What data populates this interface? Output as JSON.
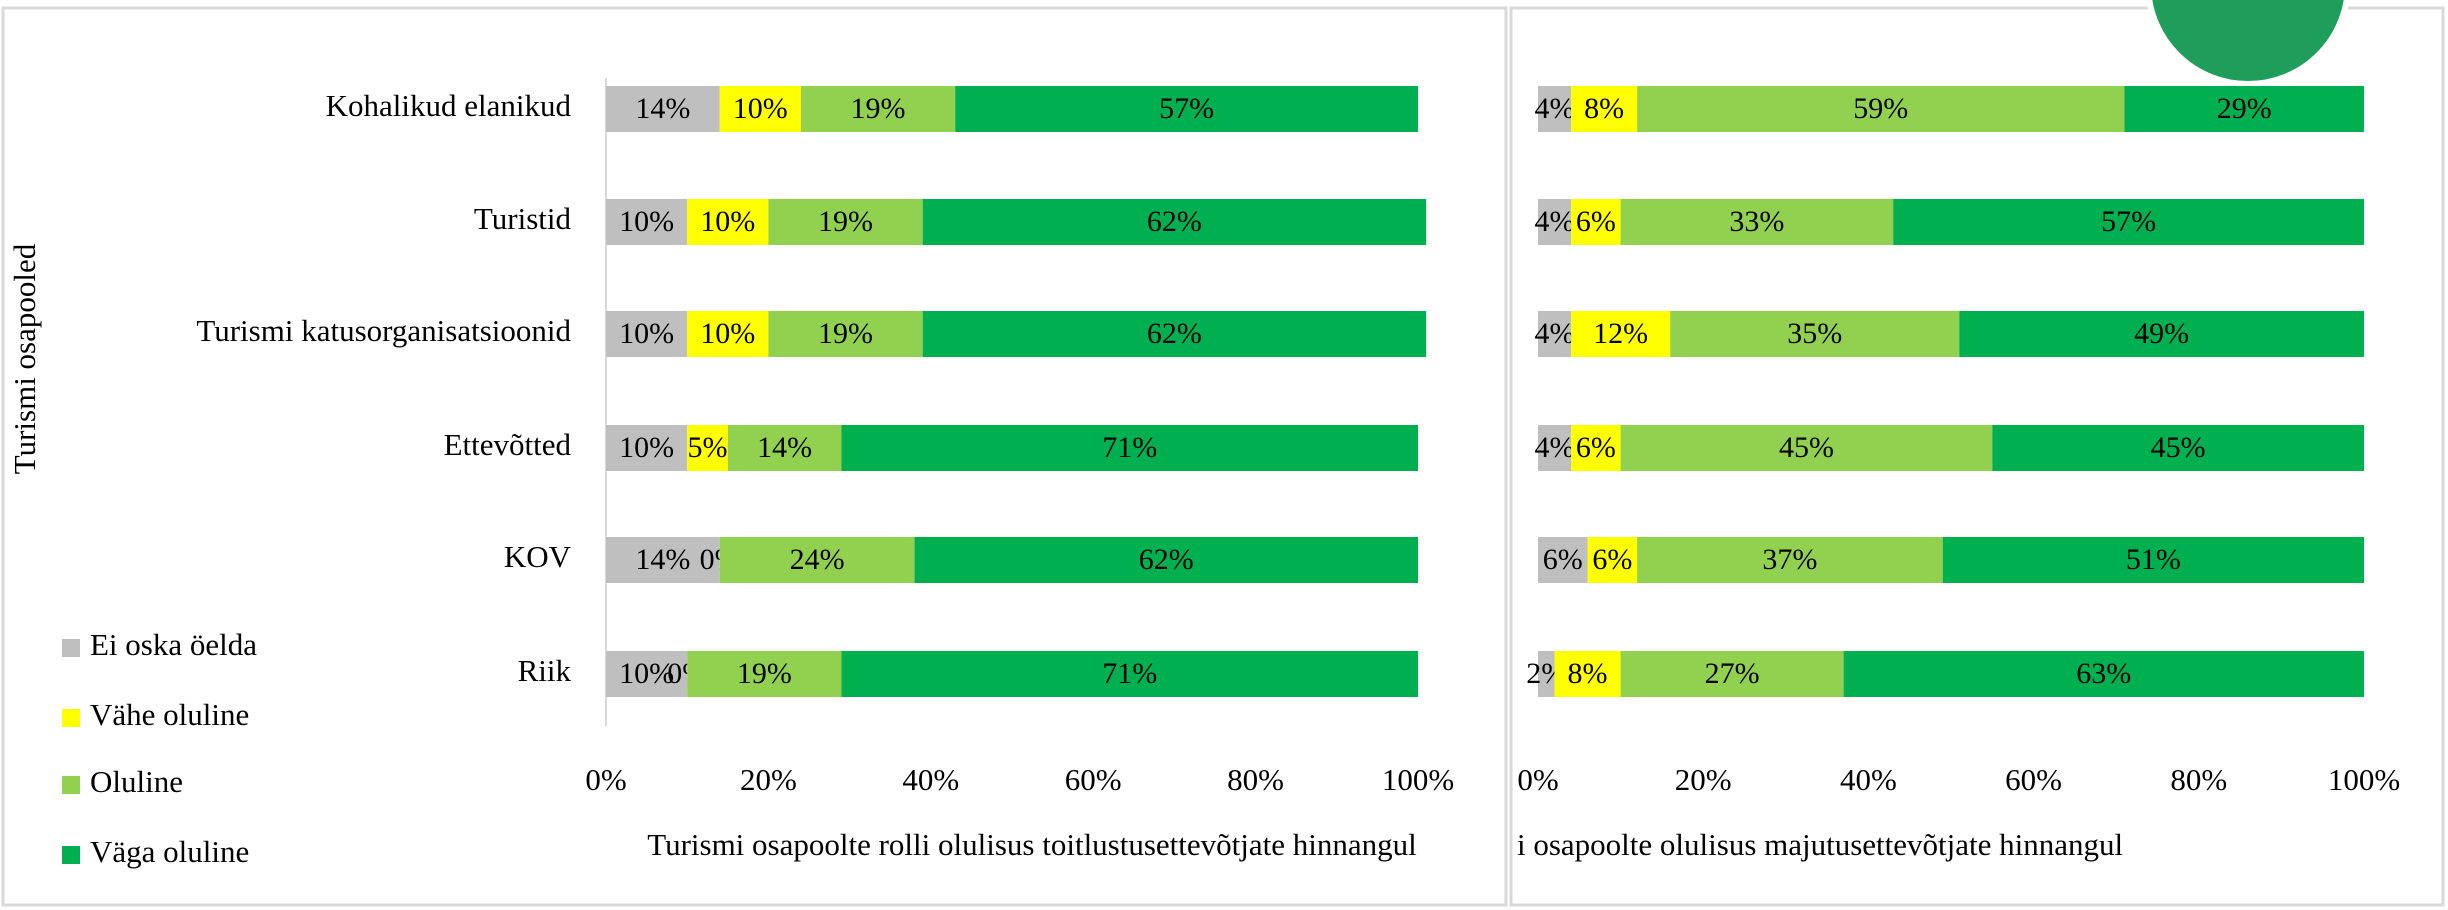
{
  "chart_data": [
    {
      "type": "bar",
      "orientation": "horizontal",
      "stacked": true,
      "y_label": "Turismi osapooled",
      "x_label": "Turismi osapoolte rolli olulisus toitlustusettevõtjate hinnangul",
      "categories": [
        "Kohalikud elanikud",
        "Turistid",
        "Turismi katusorganisatsioonid",
        "Ettevõtted",
        "KOV",
        "Riik"
      ],
      "series": [
        {
          "name": "Ei oska öelda",
          "color": "#bfbfbf",
          "values": [
            14,
            10,
            10,
            10,
            14,
            10
          ],
          "value_labels": [
            "14%",
            "10%",
            "10%",
            "10%",
            "14%",
            "10%"
          ]
        },
        {
          "name": "Vähe oluline",
          "color": "#ffff00",
          "values": [
            10,
            10,
            10,
            5,
            0,
            0
          ],
          "value_labels": [
            "10%",
            "10%",
            "10%",
            "5%",
            "0%",
            "0%"
          ]
        },
        {
          "name": "Oluline",
          "color": "#92d050",
          "values": [
            19,
            19,
            19,
            14,
            24,
            19
          ],
          "value_labels": [
            "19%",
            "19%",
            "19%",
            "14%",
            "24%",
            "19%"
          ]
        },
        {
          "name": "Väga oluline",
          "color": "#00b050",
          "values": [
            57,
            62,
            62,
            71,
            62,
            71
          ],
          "value_labels": [
            "57%",
            "62%",
            "62%",
            "71%",
            "62%",
            "71%"
          ]
        }
      ],
      "xlim": [
        0,
        100
      ],
      "xticks": [
        {
          "value": 0,
          "label": "0%"
        },
        {
          "value": 20,
          "label": "20%"
        },
        {
          "value": 40,
          "label": "40%"
        },
        {
          "value": 60,
          "label": "60%"
        },
        {
          "value": 80,
          "label": "80%"
        },
        {
          "value": 100,
          "label": "100%"
        }
      ],
      "legend": "bottom-left"
    },
    {
      "type": "bar",
      "orientation": "horizontal",
      "stacked": true,
      "x_label": "i osapoolte olulisus majutusettevõtjate hinnangul",
      "series": [
        {
          "color": "#bfbfbf",
          "values": [
            4,
            4,
            4,
            4,
            6,
            2
          ],
          "value_labels": [
            "4%",
            "4%",
            "4%",
            "4%",
            "6%",
            "2%"
          ]
        },
        {
          "color": "#ffff00",
          "values": [
            8,
            6,
            12,
            6,
            6,
            8
          ],
          "value_labels": [
            "8%",
            "6%",
            "12%",
            "6%",
            "6%",
            "8%"
          ]
        },
        {
          "color": "#92d050",
          "values": [
            59,
            33,
            35,
            45,
            37,
            27
          ],
          "value_labels": [
            "59%",
            "33%",
            "35%",
            "45%",
            "37%",
            "27%"
          ]
        },
        {
          "color": "#00b050",
          "values": [
            29,
            57,
            49,
            45,
            51,
            63
          ],
          "value_labels": [
            "29%",
            "57%",
            "49%",
            "45%",
            "51%",
            "63%"
          ]
        }
      ],
      "xlim": [
        0,
        100
      ],
      "xticks": [
        {
          "value": 0,
          "label": "0%"
        },
        {
          "value": 20,
          "label": "20%"
        },
        {
          "value": 40,
          "label": "40%"
        },
        {
          "value": 60,
          "label": "60%"
        },
        {
          "value": 80,
          "label": "80%"
        },
        {
          "value": 100,
          "label": "100%"
        }
      ]
    }
  ]
}
